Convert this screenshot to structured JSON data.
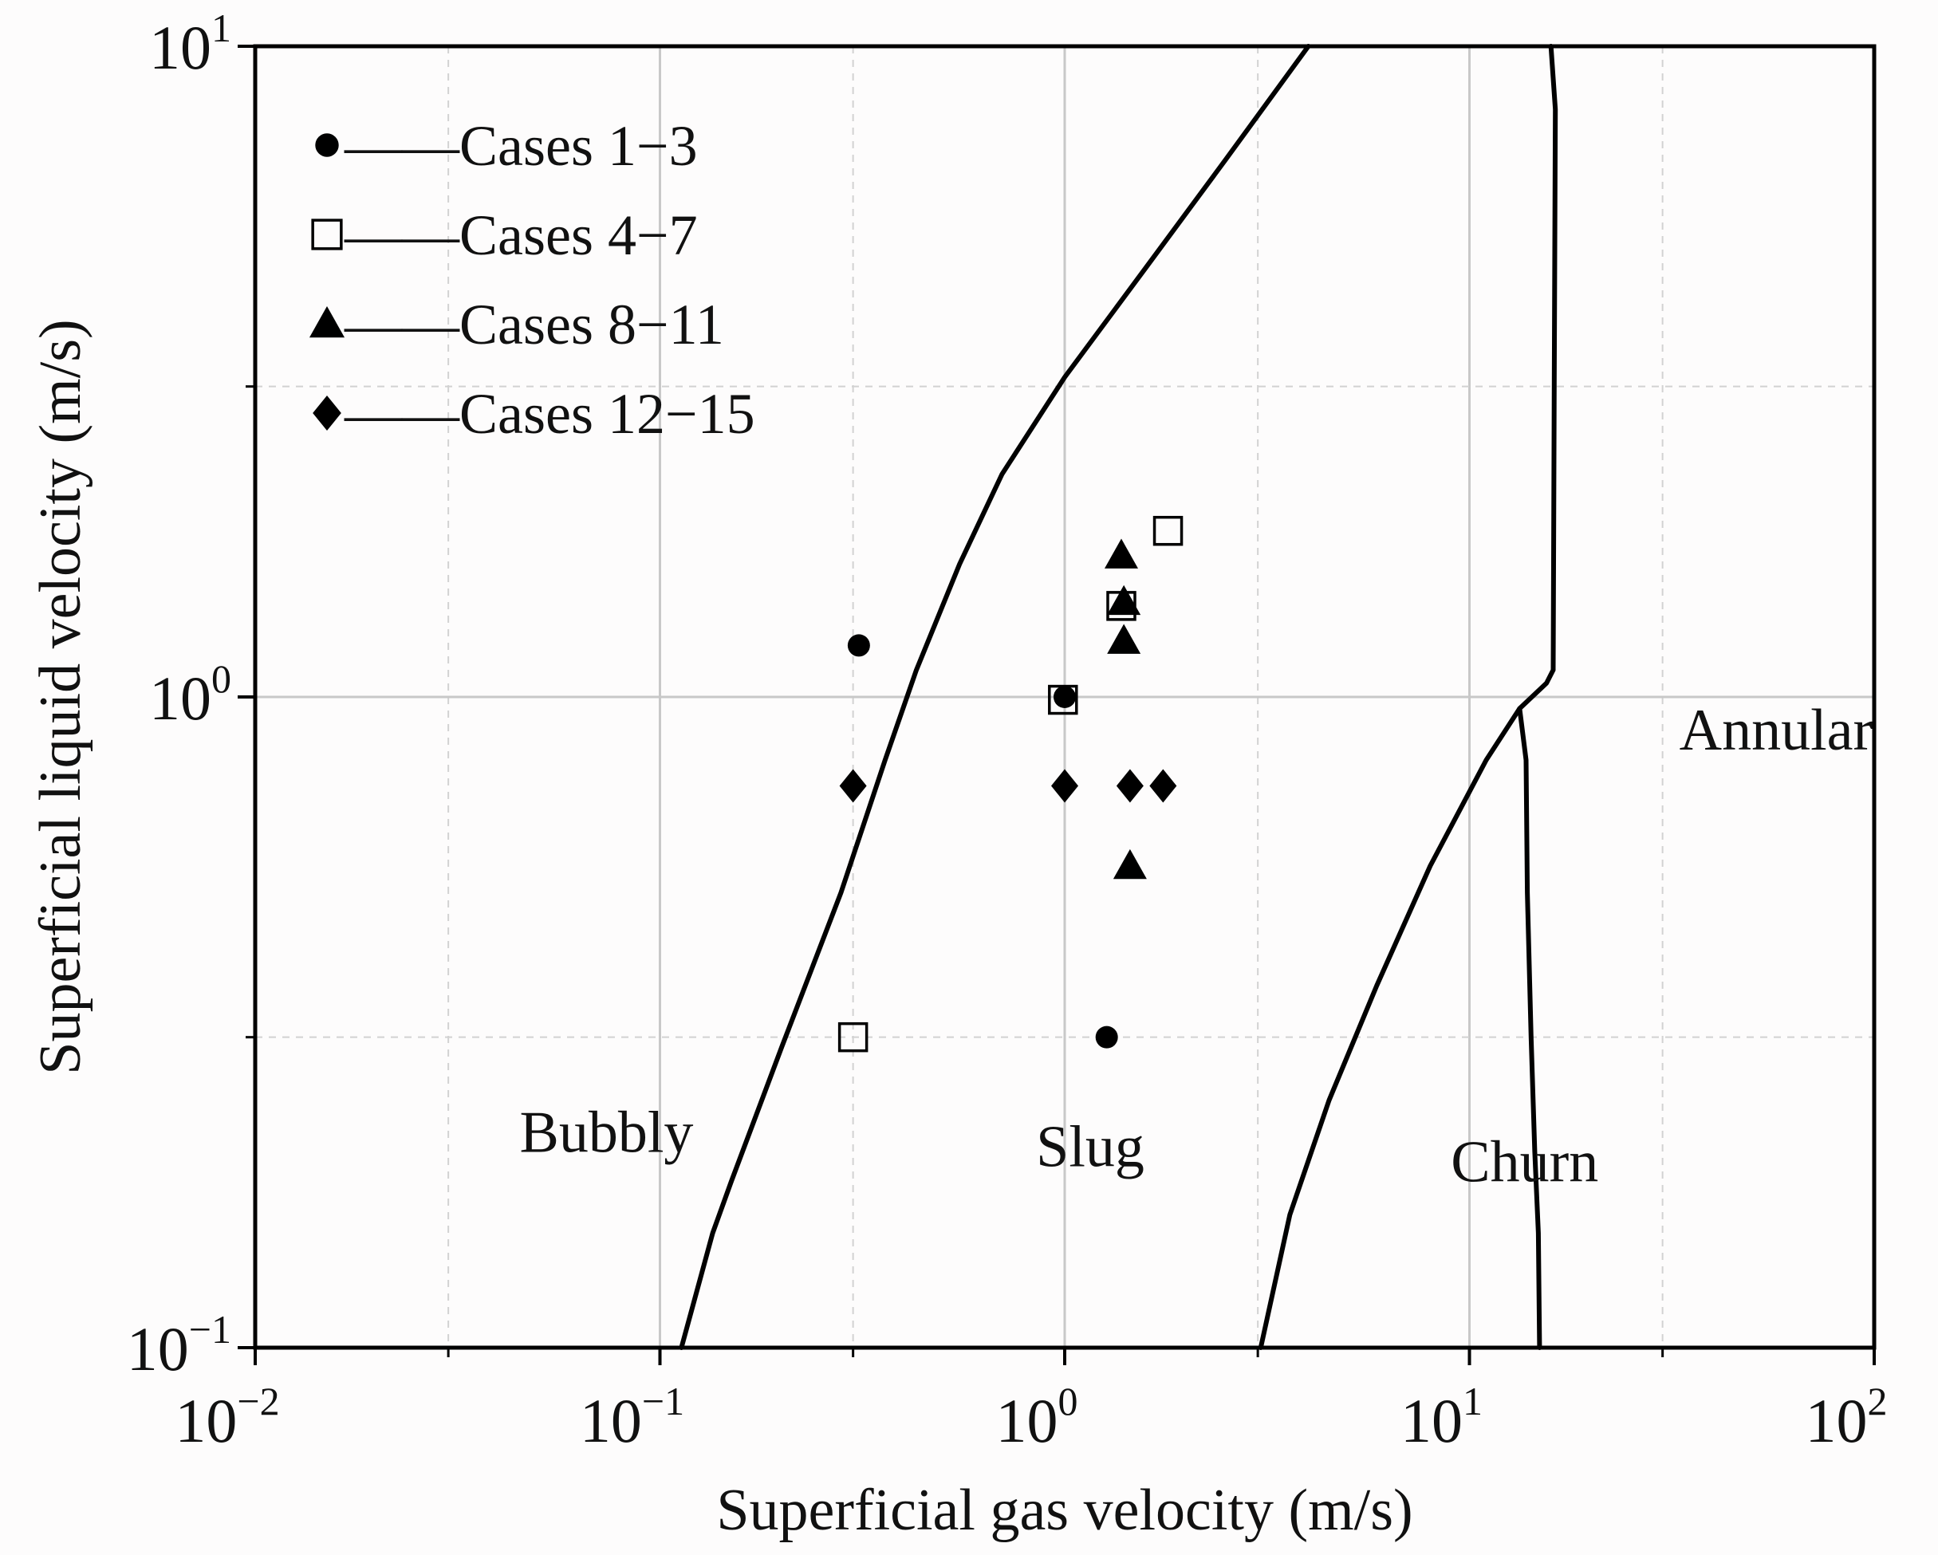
{
  "chart_data": {
    "type": "scatter",
    "xscale": "log",
    "yscale": "log",
    "xlim": [
      0.01,
      100
    ],
    "ylim": [
      0.1,
      10
    ],
    "xlabel": "Superficial gas velocity (m/s)",
    "ylabel": "Superficial liquid velocity (m/s)",
    "grid": true,
    "legend_position": "top-left",
    "xticks": [
      {
        "value": 0.01,
        "base": "10",
        "exp": "−2"
      },
      {
        "value": 0.1,
        "base": "10",
        "exp": "−1"
      },
      {
        "value": 1,
        "base": "10",
        "exp": "0"
      },
      {
        "value": 10,
        "base": "10",
        "exp": "1"
      },
      {
        "value": 100,
        "base": "10",
        "exp": "2"
      }
    ],
    "yticks": [
      {
        "value": 0.1,
        "base": "10",
        "exp": "−1"
      },
      {
        "value": 1,
        "base": "10",
        "exp": "0"
      },
      {
        "value": 10,
        "base": "10",
        "exp": "1"
      }
    ],
    "series": [
      {
        "name": "Cases 1−3",
        "legend": "——Cases 1−3",
        "marker": "filled-circle",
        "points": [
          [
            0.31,
            1.2
          ],
          [
            1.0,
            1.0
          ],
          [
            1.27,
            0.3
          ]
        ]
      },
      {
        "name": "Cases 4−7",
        "legend": "——Cases 4−7",
        "marker": "open-square",
        "points": [
          [
            0.3,
            0.3
          ],
          [
            0.99,
            0.99
          ],
          [
            1.38,
            1.38
          ],
          [
            1.8,
            1.8
          ]
        ]
      },
      {
        "name": "Cases 8−11",
        "legend": "——Cases 8−11",
        "marker": "filled-triangle",
        "points": [
          [
            1.38,
            1.65
          ],
          [
            1.4,
            1.4
          ],
          [
            1.4,
            1.22
          ],
          [
            1.45,
            0.55
          ]
        ]
      },
      {
        "name": "Cases 12−15",
        "legend": "——Cases 12−15",
        "marker": "filled-diamond",
        "points": [
          [
            0.3,
            0.73
          ],
          [
            1.0,
            0.73
          ],
          [
            1.45,
            0.73
          ],
          [
            1.75,
            0.73
          ]
        ]
      }
    ],
    "boundaries": [
      {
        "name": "bubbly-slug",
        "points": [
          [
            0.113,
            0.1
          ],
          [
            0.135,
            0.15
          ],
          [
            0.15,
            0.18
          ],
          [
            0.2,
            0.29
          ],
          [
            0.28,
            0.5
          ],
          [
            0.36,
            0.8
          ],
          [
            0.43,
            1.1
          ],
          [
            0.55,
            1.6
          ],
          [
            0.7,
            2.2
          ],
          [
            1.0,
            3.1
          ],
          [
            1.6,
            4.6
          ],
          [
            2.5,
            6.7
          ],
          [
            4.0,
            10.0
          ]
        ]
      },
      {
        "name": "slug-churn",
        "points": [
          [
            3.05,
            0.1
          ],
          [
            3.6,
            0.16
          ],
          [
            4.5,
            0.24
          ],
          [
            5.9,
            0.36
          ],
          [
            8.0,
            0.55
          ],
          [
            11.0,
            0.8
          ],
          [
            13.3,
            0.96
          ]
        ]
      },
      {
        "name": "churn-annular",
        "points": [
          [
            14.9,
            0.1
          ],
          [
            14.8,
            0.15
          ],
          [
            14.5,
            0.2
          ],
          [
            14.2,
            0.3
          ],
          [
            13.9,
            0.5
          ],
          [
            13.8,
            0.8
          ],
          [
            13.3,
            0.96
          ]
        ]
      },
      {
        "name": "slug-annular",
        "points": [
          [
            13.3,
            0.96
          ],
          [
            15.5,
            1.05
          ],
          [
            16.1,
            1.1
          ],
          [
            16.2,
            3.0
          ],
          [
            16.3,
            8.0
          ],
          [
            15.9,
            10.0
          ]
        ]
      }
    ],
    "regions": [
      {
        "label": "Bubbly",
        "x": 0.045,
        "y": 0.2
      },
      {
        "label": "Slug",
        "x": 0.85,
        "y": 0.19
      },
      {
        "label": "Churn",
        "x": 9.0,
        "y": 0.18
      },
      {
        "label": "Annular",
        "x": 33.0,
        "y": 0.83
      }
    ]
  }
}
